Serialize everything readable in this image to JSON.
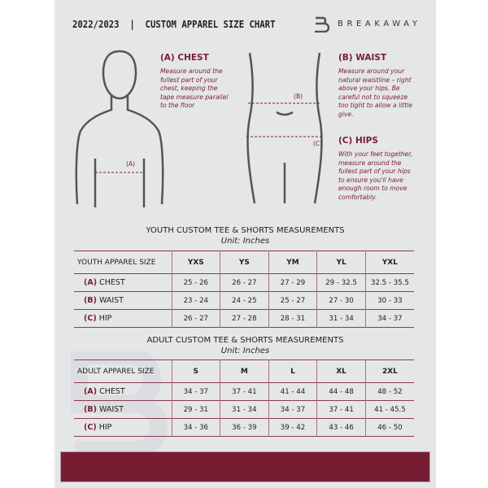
{
  "header": {
    "title": "2022/2023  |  CUSTOM APPAREL SIZE CHART",
    "brand": "BREAKAWAY",
    "brand_color": "#761c33"
  },
  "guide": {
    "chest": {
      "title": "(A) CHEST",
      "desc": "Measure around the fullest part of your chest, keeping the tape measure parallel to the floor",
      "marker": "(A)"
    },
    "waist": {
      "title": "(B) WAIST",
      "desc": "Measure around your natural waistline – right above your hips. Be careful not to squeeze too tight to allow a little give.",
      "marker": "(B)"
    },
    "hips": {
      "title": "(C) HIPS",
      "desc": "With your feet together, measure around the fullest part of your hips to ensure you'll have enough room to move comfortably.",
      "marker": "(C)"
    }
  },
  "youth": {
    "title": "YOUTH CUSTOM TEE & SHORTS MEASUREMENTS",
    "unit": "Unit: Inches",
    "header": "YOUTH APPAREL SIZE",
    "sizes": [
      "YXS",
      "YS",
      "YM",
      "YL",
      "YXL"
    ],
    "rows": [
      {
        "letter": "(A)",
        "name": "CHEST",
        "values": [
          "25 - 26",
          "26 - 27",
          "27 - 29",
          "29 - 32.5",
          "32.5 - 35.5"
        ]
      },
      {
        "letter": "(B)",
        "name": "WAIST",
        "values": [
          "23 - 24",
          "24 - 25",
          "25 - 27",
          "27 - 30",
          "30 - 33"
        ]
      },
      {
        "letter": "(C)",
        "name": "HIP",
        "values": [
          "26 - 27",
          "27 - 28",
          "28 - 31",
          "31 - 34",
          "34 - 37"
        ]
      }
    ]
  },
  "adult": {
    "title": "ADULT CUSTOM TEE & SHORTS MEASUREMENTS",
    "unit": "Unit: Inches",
    "header": "ADULT APPAREL SIZE",
    "sizes": [
      "S",
      "M",
      "L",
      "XL",
      "2XL"
    ],
    "rows": [
      {
        "letter": "(A)",
        "name": "CHEST",
        "values": [
          "34 - 37",
          "37 - 41",
          "41 - 44",
          "44 - 48",
          "48 - 52"
        ]
      },
      {
        "letter": "(B)",
        "name": "WAIST",
        "values": [
          "29 - 31",
          "31 - 34",
          "34 - 37",
          "37 - 41",
          "41 - 45.5"
        ]
      },
      {
        "letter": "(C)",
        "name": "HIP",
        "values": [
          "34 - 36",
          "36 - 39",
          "39 - 42",
          "43 - 46",
          "46 - 50"
        ]
      }
    ]
  }
}
